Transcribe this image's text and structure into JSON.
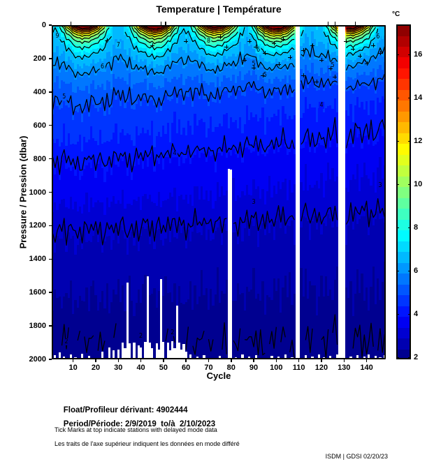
{
  "title": "Temperature | Température",
  "footer": {
    "float_label": "Float/Profileur dérivant:",
    "float_value": "4902444",
    "period_label": "Period/Période:",
    "period_value": "2/9/2019  to/à  2/10/2023",
    "note_en": "Tick Marks at top indicate stations with delayed mode data",
    "note_fr": "Les traits de l'axe supérieur indiquent les données en mode différé",
    "credit": "ISDM | GDSI 02/20/23"
  },
  "colors": {
    "background": "#ffffff",
    "axis": "#000000",
    "contour": "#000000",
    "missing_data": "#ffffff"
  },
  "chart_data": {
    "type": "heatmap",
    "title": "Temperature | Température",
    "xlabel": "Cycle",
    "ylabel": "Pressure / Pression (dbar)",
    "colorbar_label": "°C",
    "x_range": [
      0.5,
      148.5
    ],
    "x_ticks": [
      10,
      20,
      30,
      40,
      50,
      60,
      70,
      80,
      90,
      100,
      110,
      120,
      130,
      140
    ],
    "y_range": [
      0,
      2000
    ],
    "y_ticks": [
      0,
      200,
      400,
      600,
      800,
      1000,
      1200,
      1400,
      1600,
      1800,
      2000
    ],
    "colorbar": {
      "range": [
        1.9,
        17.4
      ],
      "ticks": [
        2,
        4,
        6,
        8,
        10,
        12,
        14,
        16
      ],
      "colormap": "jet",
      "segments": 31
    },
    "contour_levels": [
      2,
      3,
      4,
      5,
      6,
      7,
      8,
      9,
      10,
      11,
      12,
      13,
      14,
      15,
      16
    ],
    "base_profile": [
      [
        0,
        6.9
      ],
      [
        50,
        6.75
      ],
      [
        100,
        6.55
      ],
      [
        150,
        6.35
      ],
      [
        200,
        6.1
      ],
      [
        250,
        5.85
      ],
      [
        300,
        5.6
      ],
      [
        350,
        5.35
      ],
      [
        400,
        5.15
      ],
      [
        450,
        5.0
      ],
      [
        500,
        4.85
      ],
      [
        600,
        4.6
      ],
      [
        700,
        4.38
      ],
      [
        800,
        4.02
      ],
      [
        900,
        3.82
      ],
      [
        1000,
        3.6
      ],
      [
        1100,
        3.33
      ],
      [
        1200,
        3.05
      ],
      [
        1400,
        2.7
      ],
      [
        1600,
        2.45
      ],
      [
        1800,
        2.15
      ],
      [
        1920,
        2.0
      ],
      [
        2000,
        1.93
      ]
    ],
    "seasonal": {
      "peaks": [
        15,
        46,
        73,
        100,
        133
      ],
      "peak_amplitudes": [
        10.2,
        10.8,
        9.6,
        10.9,
        10.4
      ],
      "half_width_cycles": 14,
      "decay_dbar": 50,
      "subsurface_frac": 0.22,
      "subsurface_decay_dbar": 150
    },
    "cooling_trend": {
      "max_delta_c": 0.6,
      "start_cycle": 15,
      "full_cycle": 148,
      "depth_center": 450,
      "depth_sigma": 800
    },
    "noise": {
      "a1": 0.18,
      "a2": 0.12,
      "a3": 0.08,
      "b1": 0.09,
      "b2": 0.05
    },
    "missing_cycles": [
      109,
      110,
      128,
      129,
      130
    ],
    "truncated_profiles": [
      [
        34,
        1540
      ],
      [
        43,
        1505
      ],
      [
        49,
        1520
      ],
      [
        56,
        1680
      ],
      [
        79,
        860
      ],
      [
        80,
        865
      ]
    ],
    "bottom_gaps": [
      [
        2,
        1975
      ],
      [
        4,
        1960
      ],
      [
        6,
        1985
      ],
      [
        9,
        1970
      ],
      [
        11,
        1988
      ],
      [
        14,
        1965
      ],
      [
        17,
        1980
      ],
      [
        20,
        1990
      ],
      [
        23,
        1955
      ],
      [
        26,
        1930
      ],
      [
        28,
        1945
      ],
      [
        30,
        1940
      ],
      [
        32,
        1900
      ],
      [
        33,
        1935
      ],
      [
        35,
        1905
      ],
      [
        37,
        1900
      ],
      [
        39,
        1915
      ],
      [
        40,
        1930
      ],
      [
        42,
        1895
      ],
      [
        44,
        1900
      ],
      [
        45,
        1935
      ],
      [
        47,
        1905
      ],
      [
        48,
        1940
      ],
      [
        50,
        1895
      ],
      [
        52,
        1900
      ],
      [
        53,
        1945
      ],
      [
        54,
        1890
      ],
      [
        55,
        1935
      ],
      [
        57,
        1900
      ],
      [
        58,
        1940
      ],
      [
        59,
        1910
      ],
      [
        60,
        1955
      ],
      [
        62,
        1970
      ],
      [
        65,
        1985
      ],
      [
        68,
        1975
      ],
      [
        72,
        1990
      ],
      [
        75,
        1980
      ],
      [
        82,
        1988
      ],
      [
        85,
        1970
      ],
      [
        88,
        1982
      ],
      [
        91,
        1975
      ],
      [
        95,
        1990
      ],
      [
        98,
        1978
      ],
      [
        101,
        1985
      ],
      [
        104,
        1972
      ],
      [
        107,
        1988
      ],
      [
        113,
        1975
      ],
      [
        116,
        1985
      ],
      [
        119,
        1970
      ],
      [
        121,
        1988
      ],
      [
        124,
        1978
      ],
      [
        127,
        1972
      ],
      [
        133,
        1982
      ],
      [
        136,
        1975
      ],
      [
        139,
        1985
      ],
      [
        141,
        1970
      ],
      [
        144,
        1980
      ],
      [
        146,
        1988
      ],
      [
        148,
        1975
      ]
    ],
    "delayed_mode_tick_cycles": [
      9,
      49,
      51,
      123,
      126,
      135
    ],
    "contour_labels": [
      [
        9,
        3,
        65
      ],
      [
        7,
        30,
        120
      ],
      [
        8,
        70,
        95
      ],
      [
        6,
        23,
        250
      ],
      [
        5,
        6,
        430
      ],
      [
        4,
        55,
        770
      ],
      [
        3,
        90,
        1060
      ],
      [
        3,
        146,
        960
      ],
      [
        2,
        7,
        1895
      ],
      [
        2,
        40,
        1860
      ],
      [
        2,
        54,
        1840
      ],
      [
        6,
        92,
        148
      ],
      [
        5,
        90,
        235
      ],
      [
        5,
        95,
        300
      ],
      [
        4,
        120,
        480
      ],
      [
        6,
        145,
        70
      ],
      [
        5,
        125,
        240
      ]
    ],
    "plus_marks": [
      [
        88,
        95
      ],
      [
        91,
        130
      ],
      [
        95,
        165
      ],
      [
        99,
        110
      ],
      [
        103,
        85
      ],
      [
        86,
        210
      ],
      [
        90,
        255
      ],
      [
        94,
        300
      ],
      [
        101,
        235
      ],
      [
        106,
        190
      ],
      [
        112,
        150
      ],
      [
        116,
        120
      ],
      [
        120,
        210
      ],
      [
        124,
        260
      ],
      [
        131,
        95
      ],
      [
        134,
        140
      ],
      [
        137,
        185
      ],
      [
        140,
        230
      ],
      [
        143,
        120
      ],
      [
        146,
        165
      ],
      [
        75,
        70
      ],
      [
        78,
        130
      ],
      [
        60,
        95
      ],
      [
        45,
        120
      ],
      [
        25,
        90
      ],
      [
        112,
        300
      ],
      [
        118,
        340
      ],
      [
        126,
        310
      ]
    ]
  }
}
